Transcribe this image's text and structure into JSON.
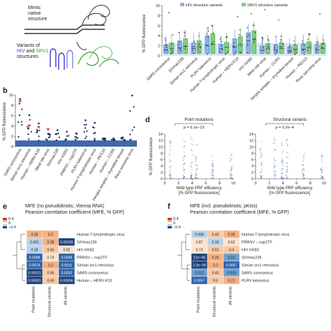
{
  "panel_a": {
    "letter": "",
    "mimic_label": "Mimic\nnative\nstructure",
    "variants_prefix": "Variants of",
    "hiv": "HIV",
    "and": "and",
    "srv1": "SRV1",
    "structures": "structures",
    "colors": {
      "hiv": "#3b3bd1",
      "srv1": "#3aa53a"
    }
  },
  "panel_box": {
    "ylabel": "% GFP fluorescence",
    "yticks": [
      "0",
      "2",
      "4",
      "6",
      "8",
      "10"
    ],
    "legend": {
      "hiv": "HIV structure variants",
      "srv1": "SRV1 structure variants"
    },
    "categories": [
      "SARS coronavirus",
      "SIVmac239",
      "Simian srv1 retrovirus",
      "PLRV luteovirus",
      "Human T-lymphotropic virus",
      "Human – HERV-K10",
      "HIV HXB2",
      "West nile virus",
      "Human – CCR5",
      "Herpes simplex – thymidine kinase",
      "Human – PEG10",
      "Rous sarcoma virus"
    ]
  },
  "panel_b": {
    "letter": "b",
    "ylabel": "% GFP fluorescence",
    "yticks": [
      "0",
      "2",
      "4",
      "6",
      "8",
      "10"
    ],
    "categories": [
      "SARS coronavirus",
      "Simian srv1 retrovirus",
      "Human – HERV-K10",
      "West nile virus",
      "SIVmac239",
      "HIV HXB2",
      "PRRSV – nsp2TF",
      "PLRV luteovirus",
      "Human T-lymphotropic virus",
      "Human – PEG10",
      "Human – CCR5",
      "Herpes simplex – thymidine kinase",
      "Rous sarcoma virus"
    ]
  },
  "panel_d": {
    "letter": "d",
    "ylabel": "% GFP fluorescence",
    "xlabel_line1": "Wild type PRF efficiency",
    "xlabel_line2": "[% GFP fluorescence]",
    "left": {
      "title": "Point mutations",
      "pvalue": "p = 6.1e−13"
    },
    "right": {
      "title": "Structural variants",
      "pvalue": "p = 5.2e−4"
    },
    "xticks": [
      "0",
      "2",
      "4",
      "6",
      "8",
      "10"
    ],
    "yticks": [
      "0",
      "2",
      "4",
      "6",
      "8",
      "10",
      "12",
      "14"
    ]
  },
  "panel_e": {
    "letter": "e",
    "title1": "MFE (no pseudoknots; Vienna RNA)",
    "title2": "Pearson correlation coefficient (MFE, % GFP)",
    "colorbar_ticks": [
      "0.4",
      "0",
      "−0.4"
    ],
    "columns": [
      "Point mutations",
      "Structural variants",
      "All variants"
    ],
    "rows": [
      {
        "name": "Human T-lymphotropic virus",
        "values": [
          "0.36",
          "0.2"
        ]
      },
      {
        "name": "SIVmac239",
        "values": [
          "0.081",
          "0.38",
          "0.00026"
        ]
      },
      {
        "name": "HIV HXB2",
        "values": [
          "0.18",
          "0.45",
          "0.92"
        ]
      },
      {
        "name": "PRRSV – nsp2TF",
        "values": [
          "0.0088",
          "0.74",
          "0.0048"
        ]
      },
      {
        "name": "Simian srv1 retrovirus",
        "values": [
          "0.0074",
          "0.3",
          "0.0011"
        ]
      },
      {
        "name": "SARS coronavirus",
        "values": [
          "0.00021",
          "0.56",
          "0.0033"
        ]
      },
      {
        "name": "Human – HERV-K10",
        "values": [
          "0.00001",
          "0.49",
          "0.00006"
        ]
      }
    ]
  },
  "panel_f": {
    "letter": "f",
    "title1": "MFE (incl. pseudoknots; pKiss)",
    "title2": "Pearson correlation coefficient (MFE, % GFP)",
    "colorbar_ticks": [
      "0.4",
      "0",
      "−0.4"
    ],
    "columns": [
      "Point mutations",
      "Structural variants",
      "All variants"
    ],
    "rows": [
      {
        "name": "Human T-lymphotropic virus",
        "values": [
          "0.066",
          "0.45",
          "0.26"
        ]
      },
      {
        "name": "PRRSV – nsp2TF",
        "values": [
          "0.87",
          "0.19",
          "0.62"
        ]
      },
      {
        "name": "HIV HXB2",
        "values": [
          "0.73",
          "0.51",
          "0.4"
        ]
      },
      {
        "name": "SIVmac239",
        "values": [
          "21e−06",
          "0.26",
          "0.01"
        ]
      },
      {
        "name": "Simian srv1 retrovirus",
        "values": [
          "2.3e−09",
          "0.2",
          "0.0067"
        ]
      },
      {
        "name": "SARS coronavirus",
        "values": [
          "0.012",
          "0.43",
          "0.033"
        ]
      },
      {
        "name": "PLRV luteovirus",
        "values": [
          "0.0057",
          "0.5",
          "0.21"
        ]
      }
    ]
  }
}
